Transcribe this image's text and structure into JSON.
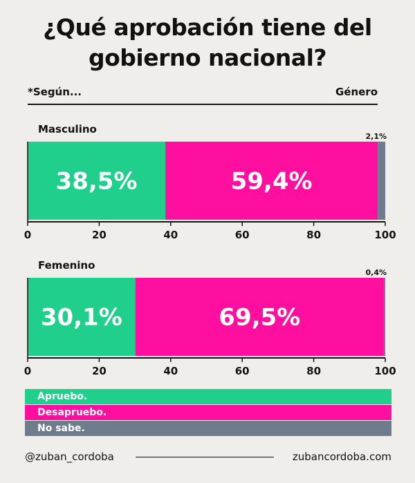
{
  "title_line1": "¿Qué aprobación tiene del",
  "title_line2": "gobierno nacional?",
  "subhead_left": "*Según...",
  "subhead_right": "Género",
  "colors": {
    "apruebo": "#1fcf8b",
    "desaprueebo": "#ff0fa0",
    "no_sabe": "#6f7c8e"
  },
  "chart_data": [
    {
      "type": "bar",
      "title": "Masculino",
      "orientation": "horizontal-stacked",
      "xlim": [
        0,
        100
      ],
      "xticks": [
        "0",
        "20",
        "40",
        "60",
        "80",
        "100"
      ],
      "series": [
        {
          "name": "Apruebo.",
          "value": 38.5,
          "label": "38,5%"
        },
        {
          "name": "Desapruebo.",
          "value": 59.4,
          "label": "59,4%"
        },
        {
          "name": "No sabe.",
          "value": 2.1,
          "label": "2,1%"
        }
      ]
    },
    {
      "type": "bar",
      "title": "Femenino",
      "orientation": "horizontal-stacked",
      "xlim": [
        0,
        100
      ],
      "xticks": [
        "0",
        "20",
        "40",
        "60",
        "80",
        "100"
      ],
      "series": [
        {
          "name": "Apruebo.",
          "value": 30.1,
          "label": "30,1%"
        },
        {
          "name": "Desapruebo.",
          "value": 69.5,
          "label": "69,5%"
        },
        {
          "name": "No sabe.",
          "value": 0.4,
          "label": "0,4%"
        }
      ]
    }
  ],
  "legend": [
    "Apruebo.",
    "Desapruebo.",
    "No sabe."
  ],
  "footer_left": "@zuban_cordoba",
  "footer_right": "zubancordoba.com"
}
